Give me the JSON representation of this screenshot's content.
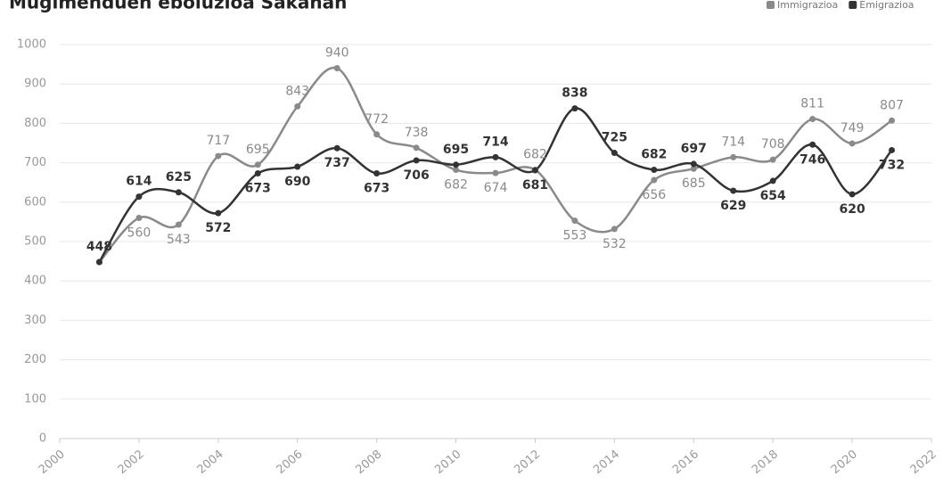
{
  "chart_data": {
    "type": "line",
    "title": "Mugimenduen eboluzioa Sakanan",
    "x": [
      2001,
      2002,
      2003,
      2004,
      2005,
      2006,
      2007,
      2008,
      2009,
      2010,
      2011,
      2012,
      2013,
      2014,
      2015,
      2016,
      2017,
      2018,
      2019,
      2020,
      2021
    ],
    "series": [
      {
        "name": "Immigrazioa",
        "color": "#8a8a8a",
        "values": [
          448,
          560,
          543,
          717,
          695,
          843,
          940,
          772,
          738,
          682,
          674,
          682,
          553,
          532,
          656,
          685,
          714,
          708,
          811,
          749,
          807
        ],
        "value_labels": [
          null,
          "560",
          "543",
          "717",
          "695",
          "843",
          "940",
          "772",
          "738",
          "682",
          "674",
          "682",
          "553",
          "532",
          "656",
          "685",
          "714",
          "708",
          "811",
          "749",
          "807"
        ]
      },
      {
        "name": "Emigrazioa",
        "color": "#333333",
        "values": [
          448,
          614,
          625,
          572,
          673,
          690,
          737,
          673,
          706,
          695,
          714,
          681,
          838,
          725,
          682,
          697,
          629,
          654,
          746,
          620,
          732
        ]
      }
    ],
    "xlim": [
      2000,
      2022
    ],
    "xticks": [
      2000,
      2002,
      2004,
      2006,
      2008,
      2010,
      2012,
      2014,
      2016,
      2018,
      2020,
      2022
    ],
    "ylim": [
      0,
      1000
    ],
    "yticks": [
      0,
      100,
      200,
      300,
      400,
      500,
      600,
      700,
      800,
      900,
      1000
    ],
    "grid": true,
    "legend": "top-right"
  }
}
